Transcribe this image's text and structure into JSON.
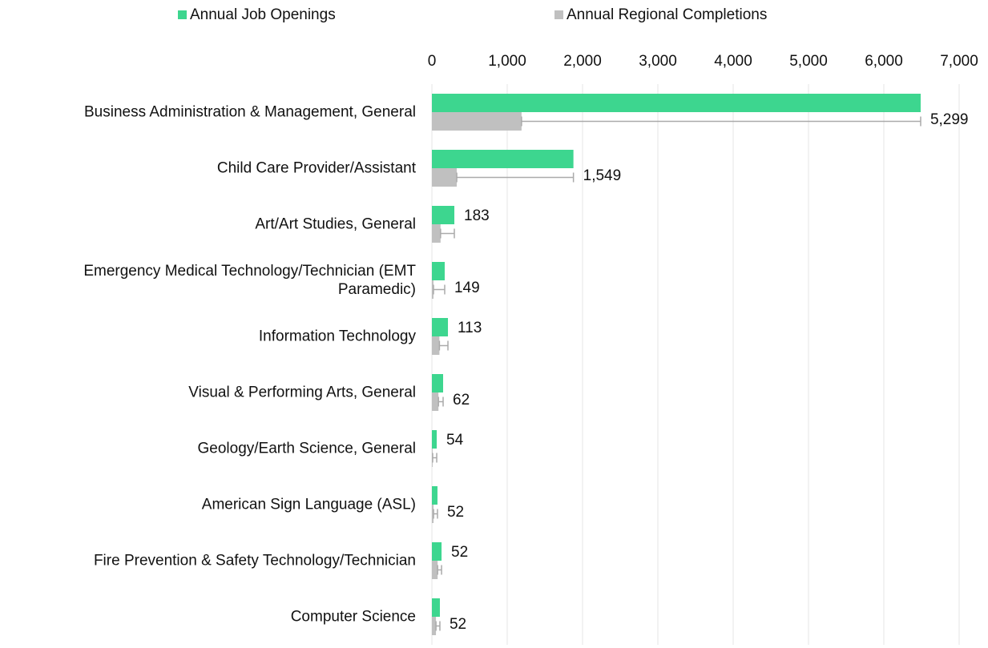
{
  "chart_data": {
    "type": "bar",
    "orientation": "horizontal",
    "categories": [
      "Business Administration & Management, General",
      "Child Care Provider/Assistant",
      "Art/Art Studies, General",
      "Emergency Medical Technology/Technician (EMT Paramedic)",
      "Information Technology",
      "Visual & Performing Arts, General",
      "Geology/Earth Science, General",
      "American Sign Language (ASL)",
      "Fire Prevention & Safety Technology/Technician",
      "Computer Science"
    ],
    "series": [
      {
        "name": "Annual Job Openings",
        "color": "#3dd68f",
        "values": [
          6489,
          1879,
          298,
          170,
          213,
          149,
          64,
          74,
          128,
          106
        ]
      },
      {
        "name": "Annual Regional Completions",
        "color": "#c0c0c0",
        "values": [
          1190,
          330,
          115,
          21,
          100,
          87,
          10,
          22,
          76,
          54
        ],
        "errors": [
          5299,
          1549,
          183,
          149,
          113,
          62,
          54,
          52,
          52,
          52
        ],
        "error_labels": [
          "5,299",
          "1,549",
          "183",
          "149",
          "113",
          "62",
          "54",
          "52",
          "52",
          "52"
        ]
      }
    ],
    "xlim": [
      0,
      7000
    ],
    "xticks": [
      0,
      {
        "value": 1000,
        "label": "1,000"
      },
      {
        "value": 2000,
        "label": "2,000"
      },
      {
        "value": 3000,
        "label": "3,000"
      },
      {
        "value": 4000,
        "label": "4,000"
      },
      {
        "value": 5000,
        "label": "5,000"
      },
      {
        "value": 6000,
        "label": "6,000"
      },
      {
        "value": 7000,
        "label": "7,000"
      }
    ],
    "grid": true,
    "legend": "top"
  }
}
